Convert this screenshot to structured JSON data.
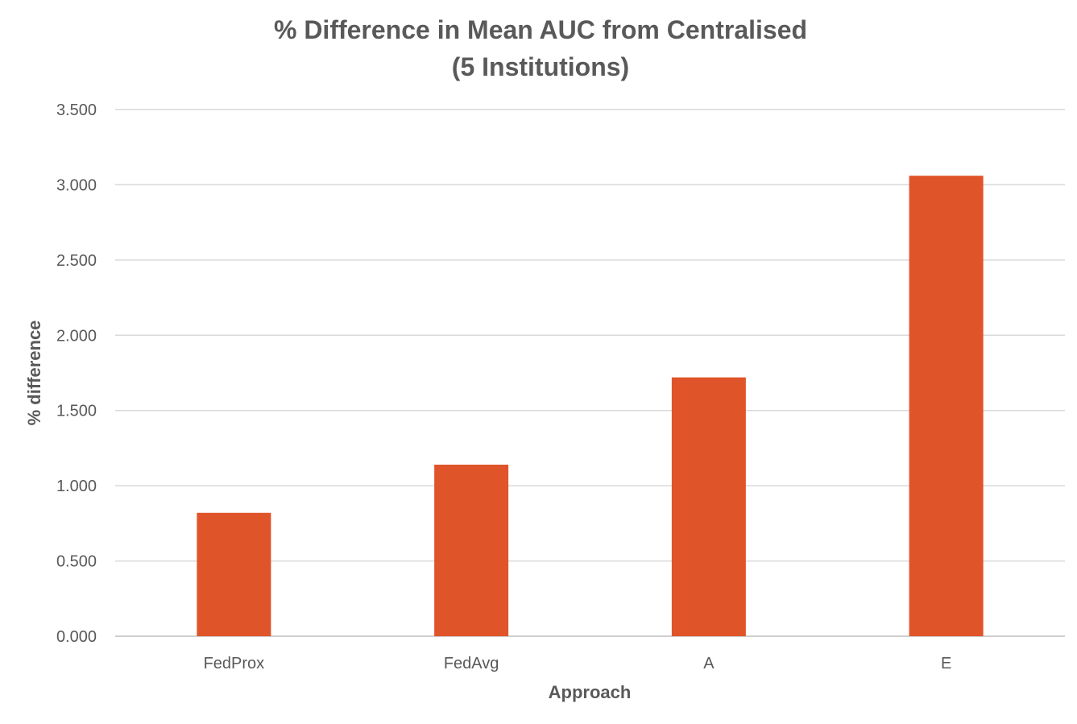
{
  "chart_data": {
    "type": "bar",
    "title_line1": "% Difference in Mean AUC from Centralised",
    "title_line2": "(5 Institutions)",
    "xlabel": "Approach",
    "ylabel": "% difference",
    "categories": [
      "FedProx",
      "FedAvg",
      "A",
      "E"
    ],
    "values": [
      0.82,
      1.14,
      1.72,
      3.06
    ],
    "ylim": [
      0,
      3.5
    ],
    "yticks": [
      "0.000",
      "0.500",
      "1.000",
      "1.500",
      "2.000",
      "2.500",
      "3.000",
      "3.500"
    ],
    "grid": true,
    "legend": "none",
    "bar_color": "#E0542A"
  }
}
